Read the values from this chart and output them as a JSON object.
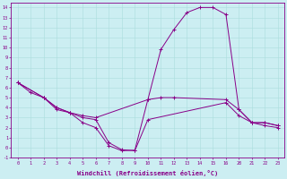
{
  "xlabel": "Windchill (Refroidissement éolien,°C)",
  "bg_color": "#cceef2",
  "grid_color": "#aadddd",
  "line_color": "#880088",
  "ylim": [
    -1.0,
    14.5
  ],
  "yticks": [
    -1,
    0,
    1,
    2,
    3,
    4,
    5,
    6,
    7,
    8,
    9,
    10,
    11,
    12,
    13,
    14
  ],
  "xtick_labels": [
    "0",
    "1",
    "2",
    "3",
    "4",
    "5",
    "6",
    "7",
    "8",
    "9",
    "10",
    "11",
    "12",
    "13",
    "14",
    "15",
    "16",
    "20",
    "21",
    "22",
    "23"
  ],
  "series1_xi": [
    0,
    1,
    2,
    3,
    4,
    5,
    6,
    7,
    8,
    9,
    10,
    11,
    12,
    13,
    14,
    15,
    16,
    17,
    18,
    19,
    20
  ],
  "series1_y": [
    6.5,
    5.5,
    5.0,
    4.0,
    3.5,
    2.5,
    2.0,
    0.2,
    -0.3,
    -0.25,
    4.8,
    9.8,
    11.8,
    13.5,
    14.0,
    14.0,
    13.3,
    3.8,
    2.5,
    2.5,
    2.2
  ],
  "series2_xi": [
    0,
    2,
    3,
    4,
    5,
    6,
    10,
    11,
    12,
    16,
    17,
    18,
    19,
    20
  ],
  "series2_y": [
    6.5,
    5.0,
    3.8,
    3.5,
    3.2,
    3.0,
    4.8,
    5.0,
    5.0,
    4.8,
    3.8,
    2.5,
    2.5,
    2.2
  ],
  "series3_xi": [
    0,
    2,
    3,
    4,
    5,
    6,
    7,
    8,
    9,
    10,
    16,
    17,
    18,
    19,
    20
  ],
  "series3_y": [
    6.5,
    5.0,
    4.0,
    3.5,
    3.0,
    2.8,
    0.5,
    -0.2,
    -0.3,
    2.8,
    4.5,
    3.2,
    2.5,
    2.2,
    2.0
  ]
}
